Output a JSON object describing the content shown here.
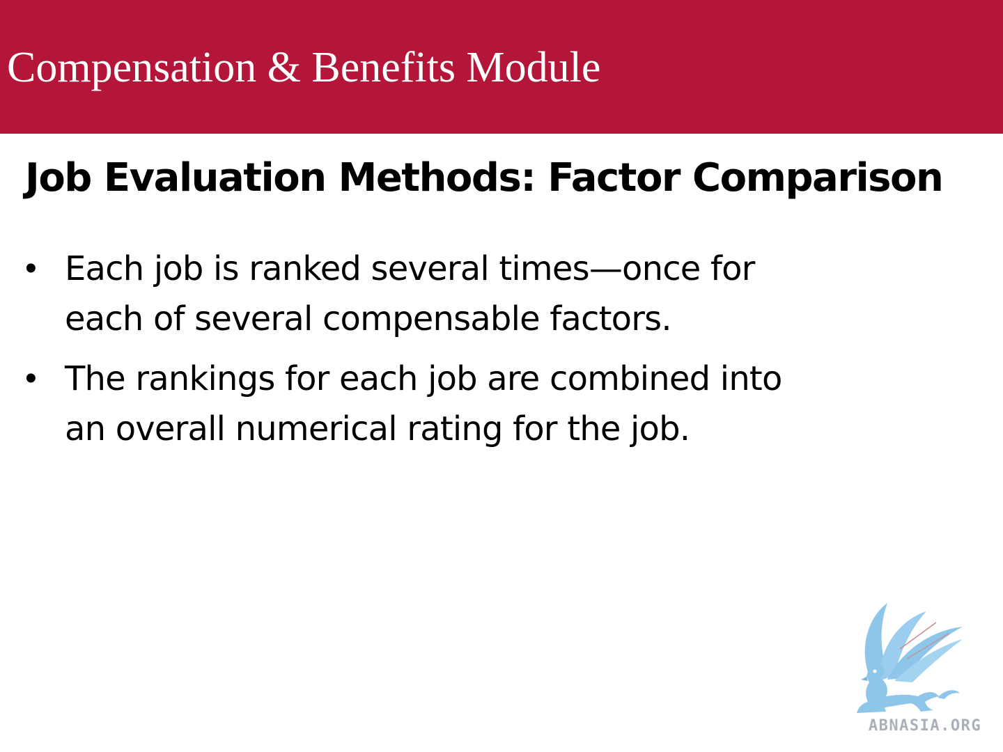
{
  "header": {
    "module_title": "Compensation & Benefits Module",
    "band_color": "#b31638"
  },
  "slide": {
    "heading": "Job Evaluation Methods: Factor Comparison",
    "bullets": [
      {
        "lines": [
          "Each job is ranked several times—once for",
          "each of several compensable factors."
        ]
      },
      {
        "lines": [
          "The rankings for each job are combined into",
          "an overall numerical rating for the job."
        ]
      }
    ]
  },
  "logo": {
    "icon": "griffin-logo-icon",
    "text": "ABNASIA.ORG",
    "color": "#8ec6ea"
  }
}
